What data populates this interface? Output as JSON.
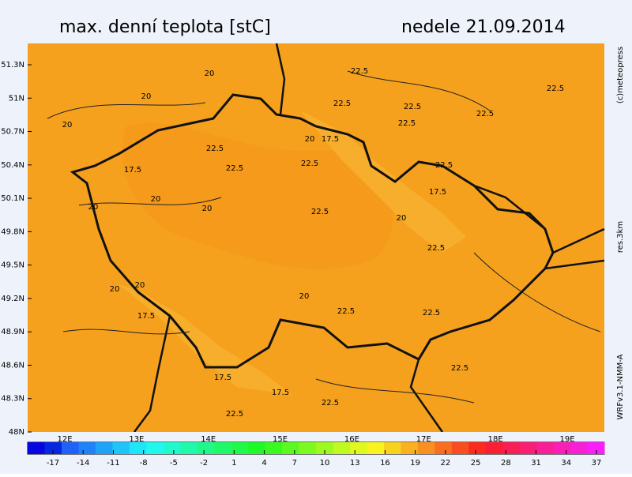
{
  "header": {
    "title": "max. denní teplota [stC]",
    "date": "nedele 21.09.2014"
  },
  "side": {
    "copyright": "(c)meteopress",
    "resolution": "res.3km",
    "model": "WRFv3.1-NMM-A"
  },
  "lat_labels": [
    "51.3N",
    "51N",
    "50.7N",
    "50.4N",
    "50.1N",
    "49.8N",
    "49.5N",
    "49.2N",
    "48.9N",
    "48.6N",
    "48.3N",
    "48N"
  ],
  "lon_labels": [
    "12E",
    "13E",
    "14E",
    "15E",
    "16E",
    "17E",
    "18E",
    "19E"
  ],
  "colorbar": {
    "ticks": [
      -17,
      -14,
      -11,
      -8,
      -5,
      -2,
      1,
      4,
      7,
      10,
      13,
      16,
      19,
      22,
      25,
      28,
      31,
      34,
      37
    ]
  },
  "contour_labels": [
    "20",
    "20",
    "20",
    "20",
    "20",
    "20",
    "20",
    "20",
    "20",
    "20",
    "20",
    "17.5",
    "17.5",
    "17.5",
    "17.5",
    "17.5",
    "17.5",
    "22.5",
    "22.5",
    "22.5",
    "22.5",
    "22.5",
    "22.5",
    "22.5",
    "22.5",
    "22.5",
    "22.5",
    "22.5",
    "22.5",
    "22.5",
    "22.5",
    "22.5",
    "22.5",
    "22.5"
  ]
}
